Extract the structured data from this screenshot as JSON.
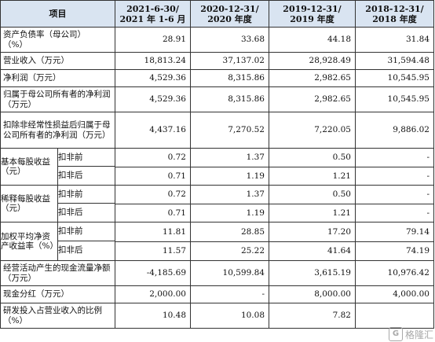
{
  "headers": {
    "item": "项目",
    "c1": "2021-6-30/\n2021 年 1-6 月",
    "c2": "2020-12-31/\n2020 年度",
    "c3": "2019-12-31/\n2019 年度",
    "c4": "2018-12-31/\n2018 年度"
  },
  "rows": {
    "r1": {
      "label": "资产负债率（母公司）\n（%）",
      "v": [
        "28.91",
        "33.68",
        "44.18",
        "31.84"
      ]
    },
    "r2": {
      "label": "营业收入（万元）",
      "v": [
        "18,813.24",
        "37,137.02",
        "28,928.49",
        "31,594.48"
      ]
    },
    "r3": {
      "label": "净利润（万元）",
      "v": [
        "4,529.36",
        "8,315.86",
        "2,982.65",
        "10,545.95"
      ]
    },
    "r4": {
      "label": "归属于母公司所有者的净利润（万元）",
      "v": [
        "4,529.36",
        "8,315.86",
        "2,982.65",
        "10,545.95"
      ]
    },
    "r5": {
      "label": "扣除非经常性损益后归属于母公司所有者的净利润（万元）",
      "v": [
        "4,437.16",
        "7,270.52",
        "7,220.05",
        "9,886.02"
      ]
    },
    "basic": {
      "label": "基本每股收益（元）",
      "a": {
        "sub": "扣非前",
        "v": [
          "0.72",
          "1.37",
          "0.50",
          "-"
        ]
      },
      "b": {
        "sub": "扣非后",
        "v": [
          "0.71",
          "1.19",
          "1.21",
          "-"
        ]
      }
    },
    "diluted": {
      "label": "稀释每股收益（元）",
      "a": {
        "sub": "扣非前",
        "v": [
          "0.72",
          "1.37",
          "0.50",
          "-"
        ]
      },
      "b": {
        "sub": "扣非后",
        "v": [
          "0.71",
          "1.19",
          "1.21",
          "-"
        ]
      }
    },
    "roe": {
      "label": "加权平均净资产收益率（%）",
      "a": {
        "sub": "扣非前",
        "v": [
          "11.81",
          "28.85",
          "17.20",
          "79.14"
        ]
      },
      "b": {
        "sub": "扣非后",
        "v": [
          "11.57",
          "25.22",
          "41.64",
          "74.19"
        ]
      }
    },
    "r6": {
      "label": "经营活动产生的现金流量净额（万元）",
      "v": [
        "-4,185.69",
        "10,599.84",
        "3,615.19",
        "10,976.42"
      ]
    },
    "r7": {
      "label": "现金分红（万元）",
      "v": [
        "2,000.00",
        "-",
        "8,000.00",
        "4,000.00"
      ]
    },
    "r8": {
      "label": "研发投入占营业收入的比例（%）",
      "v": [
        "10.48",
        "10.08",
        "7.82",
        ""
      ]
    }
  },
  "watermark": {
    "text": "格隆汇",
    "icon": "gelonghui-logo-icon",
    "icon_text": "G"
  }
}
